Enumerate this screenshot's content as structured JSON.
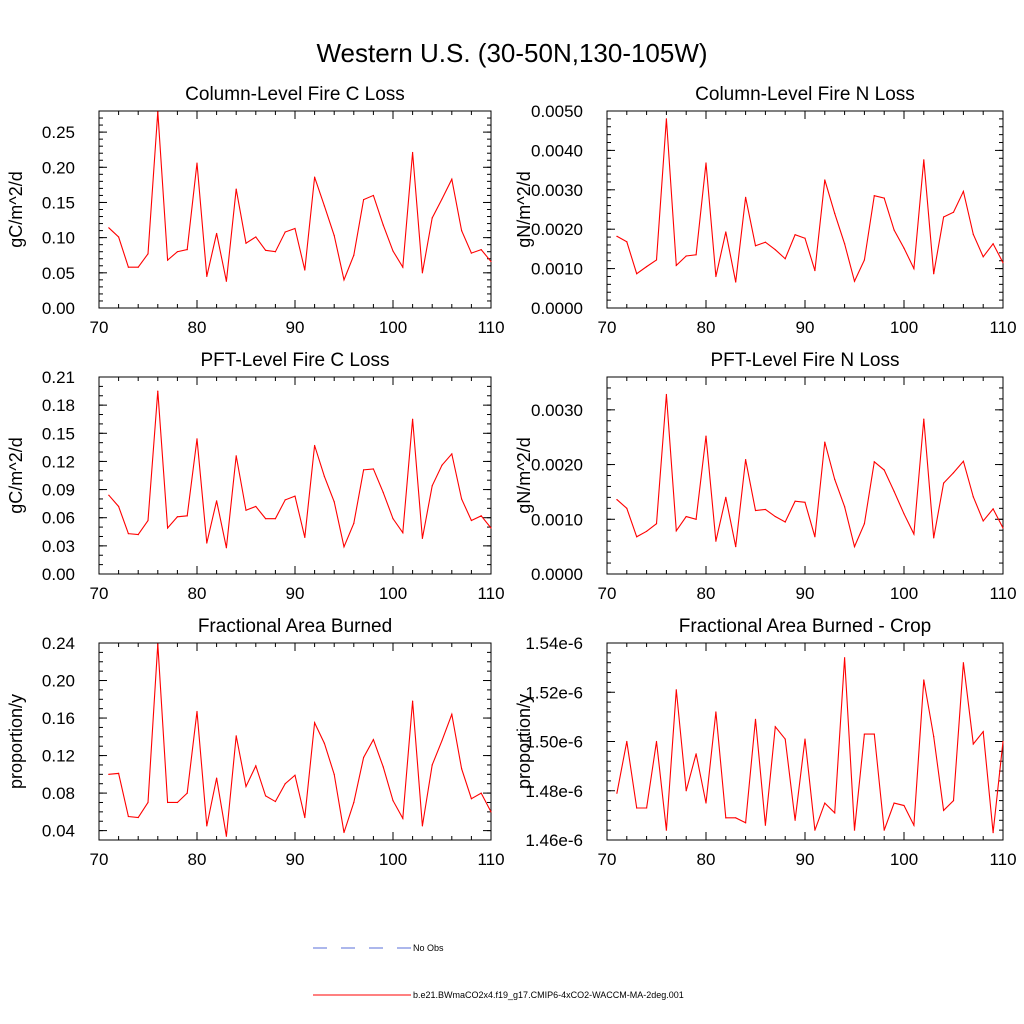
{
  "figure": {
    "title": "Western U.S. (30-50N,130-105W)"
  },
  "legend": {
    "items": [
      {
        "label": "No Obs",
        "style": "dashed",
        "color": "#5a6fd8"
      },
      {
        "label": "b.e21.BWmaCO2x4.f19_g17.CMIP6-4xCO2-WACCM-MA-2deg.001",
        "style": "solid",
        "color": "#ff0000"
      }
    ]
  },
  "chart_data": [
    {
      "type": "line",
      "title": "Column-Level Fire C Loss",
      "xlabel": "",
      "ylabel": "gC/m^2/d",
      "xlim": [
        70,
        110
      ],
      "ylim": [
        0,
        0.28
      ],
      "xticks": [
        70,
        80,
        90,
        100,
        110
      ],
      "xtick_labels": [
        "70",
        "80",
        "90",
        "100",
        "110"
      ],
      "yticks": [
        0,
        0.05,
        0.1,
        0.15,
        0.2,
        0.25
      ],
      "ytick_labels": [
        "0.00",
        "0.05",
        "0.10",
        "0.15",
        "0.20",
        "0.25"
      ],
      "yminor_step": 0.01,
      "series": [
        {
          "name": "b.e21.BWmaCO2x4.f19_g17.CMIP6-4xCO2-WACCM-MA-2deg.001",
          "color": "#ff0000",
          "x": [
            71,
            72,
            73,
            74,
            75,
            76,
            77,
            78,
            79,
            80,
            81,
            82,
            83,
            84,
            85,
            86,
            87,
            88,
            89,
            90,
            91,
            92,
            93,
            94,
            95,
            96,
            97,
            98,
            99,
            100,
            101,
            102,
            103,
            104,
            105,
            106,
            107,
            108,
            109,
            110
          ],
          "values": [
            0.114,
            0.101,
            0.058,
            0.058,
            0.077,
            0.279,
            0.068,
            0.08,
            0.083,
            0.206,
            0.045,
            0.106,
            0.038,
            0.169,
            0.092,
            0.101,
            0.082,
            0.08,
            0.108,
            0.113,
            0.054,
            0.186,
            0.145,
            0.103,
            0.04,
            0.075,
            0.154,
            0.16,
            0.118,
            0.081,
            0.058,
            0.221,
            0.05,
            0.128,
            0.155,
            0.183,
            0.11,
            0.078,
            0.083,
            0.066
          ]
        }
      ]
    },
    {
      "type": "line",
      "title": "Column-Level Fire N Loss",
      "xlabel": "",
      "ylabel": "gN/m^2/d",
      "xlim": [
        70,
        110
      ],
      "ylim": [
        0,
        0.005
      ],
      "xticks": [
        70,
        80,
        90,
        100,
        110
      ],
      "xtick_labels": [
        "70",
        "80",
        "90",
        "100",
        "110"
      ],
      "yticks": [
        0,
        0.001,
        0.002,
        0.003,
        0.004,
        0.005
      ],
      "ytick_labels": [
        "0.0000",
        "0.0010",
        "0.0020",
        "0.0030",
        "0.0040",
        "0.0050"
      ],
      "yminor_step": 0.0002,
      "series": [
        {
          "name": "b.e21.BWmaCO2x4.f19_g17.CMIP6-4xCO2-WACCM-MA-2deg.001",
          "color": "#ff0000",
          "x": [
            71,
            72,
            73,
            74,
            75,
            76,
            77,
            78,
            79,
            80,
            81,
            82,
            83,
            84,
            85,
            86,
            87,
            88,
            89,
            90,
            91,
            92,
            93,
            94,
            95,
            96,
            97,
            98,
            99,
            100,
            101,
            102,
            103,
            104,
            105,
            106,
            107,
            108,
            109,
            110
          ],
          "values": [
            0.00182,
            0.00168,
            0.00087,
            0.00105,
            0.00122,
            0.0048,
            0.00108,
            0.00132,
            0.00135,
            0.00368,
            0.0008,
            0.00193,
            0.00066,
            0.00281,
            0.00158,
            0.00167,
            0.00148,
            0.00125,
            0.00186,
            0.00177,
            0.00095,
            0.00325,
            0.0024,
            0.00163,
            0.00068,
            0.00122,
            0.00285,
            0.00279,
            0.00198,
            0.00152,
            0.001,
            0.00376,
            0.00087,
            0.00231,
            0.00243,
            0.00296,
            0.00187,
            0.0013,
            0.00163,
            0.00115
          ]
        }
      ]
    },
    {
      "type": "line",
      "title": "PFT-Level Fire C Loss",
      "xlabel": "",
      "ylabel": "gC/m^2/d",
      "xlim": [
        70,
        110
      ],
      "ylim": [
        0,
        0.21
      ],
      "xticks": [
        70,
        80,
        90,
        100,
        110
      ],
      "xtick_labels": [
        "70",
        "80",
        "90",
        "100",
        "110"
      ],
      "yticks": [
        0,
        0.03,
        0.06,
        0.09,
        0.12,
        0.15,
        0.18,
        0.21
      ],
      "ytick_labels": [
        "0.00",
        "0.03",
        "0.06",
        "0.09",
        "0.12",
        "0.15",
        "0.18",
        "0.21"
      ],
      "yminor_step": 0.01,
      "series": [
        {
          "name": "b.e21.BWmaCO2x4.f19_g17.CMIP6-4xCO2-WACCM-MA-2deg.001",
          "color": "#ff0000",
          "x": [
            71,
            72,
            73,
            74,
            75,
            76,
            77,
            78,
            79,
            80,
            81,
            82,
            83,
            84,
            85,
            86,
            87,
            88,
            89,
            90,
            91,
            92,
            93,
            94,
            95,
            96,
            97,
            98,
            99,
            100,
            101,
            102,
            103,
            104,
            105,
            106,
            107,
            108,
            109,
            110
          ],
          "values": [
            0.084,
            0.072,
            0.043,
            0.042,
            0.057,
            0.195,
            0.049,
            0.061,
            0.062,
            0.144,
            0.033,
            0.078,
            0.028,
            0.126,
            0.068,
            0.072,
            0.059,
            0.059,
            0.079,
            0.083,
            0.039,
            0.137,
            0.104,
            0.077,
            0.029,
            0.054,
            0.111,
            0.112,
            0.087,
            0.059,
            0.044,
            0.165,
            0.038,
            0.094,
            0.116,
            0.128,
            0.08,
            0.057,
            0.062,
            0.049
          ]
        }
      ]
    },
    {
      "type": "line",
      "title": "PFT-Level Fire N Loss",
      "xlabel": "",
      "ylabel": "gN/m^2/d",
      "xlim": [
        70,
        110
      ],
      "ylim": [
        0,
        0.0036
      ],
      "xticks": [
        70,
        80,
        90,
        100,
        110
      ],
      "xtick_labels": [
        "70",
        "80",
        "90",
        "100",
        "110"
      ],
      "yticks": [
        0,
        0.001,
        0.002,
        0.003
      ],
      "ytick_labels": [
        "0.0000",
        "0.0010",
        "0.0020",
        "0.0030"
      ],
      "yminor_step": 0.0002,
      "series": [
        {
          "name": "b.e21.BWmaCO2x4.f19_g17.CMIP6-4xCO2-WACCM-MA-2deg.001",
          "color": "#ff0000",
          "x": [
            71,
            72,
            73,
            74,
            75,
            76,
            77,
            78,
            79,
            80,
            81,
            82,
            83,
            84,
            85,
            86,
            87,
            88,
            89,
            90,
            91,
            92,
            93,
            94,
            95,
            96,
            97,
            98,
            99,
            100,
            101,
            102,
            103,
            104,
            105,
            106,
            107,
            108,
            109,
            110
          ],
          "values": [
            0.00136,
            0.0012,
            0.00068,
            0.00078,
            0.00092,
            0.00328,
            0.00079,
            0.00105,
            0.001,
            0.00252,
            0.0006,
            0.0014,
            0.0005,
            0.00209,
            0.00116,
            0.00118,
            0.00105,
            0.00095,
            0.00133,
            0.00131,
            0.00068,
            0.00241,
            0.00173,
            0.00123,
            0.0005,
            0.00092,
            0.00205,
            0.0019,
            0.00151,
            0.0011,
            0.00073,
            0.00283,
            0.00066,
            0.00166,
            0.00185,
            0.00206,
            0.00141,
            0.00097,
            0.00119,
            0.00084
          ]
        }
      ]
    },
    {
      "type": "line",
      "title": "Fractional Area Burned",
      "xlabel": "",
      "ylabel": "proportion/y",
      "xlim": [
        70,
        110
      ],
      "ylim": [
        0.03,
        0.24
      ],
      "xticks": [
        70,
        80,
        90,
        100,
        110
      ],
      "xtick_labels": [
        "70",
        "80",
        "90",
        "100",
        "110"
      ],
      "yticks": [
        0.04,
        0.08,
        0.12,
        0.16,
        0.2,
        0.24
      ],
      "ytick_labels": [
        "0.04",
        "0.08",
        "0.12",
        "0.16",
        "0.20",
        "0.24"
      ],
      "yminor_step": 0.01,
      "series": [
        {
          "name": "b.e21.BWmaCO2x4.f19_g17.CMIP6-4xCO2-WACCM-MA-2deg.001",
          "color": "#ff0000",
          "x": [
            71,
            72,
            73,
            74,
            75,
            76,
            77,
            78,
            79,
            80,
            81,
            82,
            83,
            84,
            85,
            86,
            87,
            88,
            89,
            90,
            91,
            92,
            93,
            94,
            95,
            96,
            97,
            98,
            99,
            100,
            101,
            102,
            103,
            104,
            105,
            106,
            107,
            108,
            109,
            110
          ],
          "values": [
            0.1,
            0.101,
            0.055,
            0.054,
            0.07,
            0.239,
            0.07,
            0.07,
            0.08,
            0.167,
            0.045,
            0.096,
            0.034,
            0.141,
            0.087,
            0.109,
            0.077,
            0.071,
            0.09,
            0.099,
            0.054,
            0.155,
            0.133,
            0.1,
            0.038,
            0.07,
            0.118,
            0.137,
            0.108,
            0.072,
            0.053,
            0.178,
            0.045,
            0.11,
            0.136,
            0.164,
            0.106,
            0.074,
            0.08,
            0.06
          ]
        }
      ]
    },
    {
      "type": "line",
      "title": "Fractional Area Burned - Crop",
      "xlabel": "",
      "ylabel": "proportion/y",
      "xlim": [
        70,
        110
      ],
      "ylim": [
        1.46e-06,
        1.54e-06
      ],
      "xticks": [
        70,
        80,
        90,
        100,
        110
      ],
      "xtick_labels": [
        "70",
        "80",
        "90",
        "100",
        "110"
      ],
      "yticks": [
        1.46e-06,
        1.48e-06,
        1.5e-06,
        1.52e-06,
        1.54e-06
      ],
      "ytick_labels": [
        "1.46e-6",
        "1.48e-6",
        "1.50e-6",
        "1.52e-6",
        "1.54e-6"
      ],
      "yminor_step": 4e-09,
      "series": [
        {
          "name": "b.e21.BWmaCO2x4.f19_g17.CMIP6-4xCO2-WACCM-MA-2deg.001",
          "color": "#ff0000",
          "x": [
            71,
            72,
            73,
            74,
            75,
            76,
            77,
            78,
            79,
            80,
            81,
            82,
            83,
            84,
            85,
            86,
            87,
            88,
            89,
            90,
            91,
            92,
            93,
            94,
            95,
            96,
            97,
            98,
            99,
            100,
            101,
            102,
            103,
            104,
            105,
            106,
            107,
            108,
            109,
            110
          ],
          "values": [
            1.479e-06,
            1.5e-06,
            1.473e-06,
            1.473e-06,
            1.5e-06,
            1.464e-06,
            1.521e-06,
            1.48e-06,
            1.495e-06,
            1.475e-06,
            1.512e-06,
            1.469e-06,
            1.469e-06,
            1.467e-06,
            1.509e-06,
            1.466e-06,
            1.506e-06,
            1.501e-06,
            1.468e-06,
            1.501e-06,
            1.464e-06,
            1.475e-06,
            1.471e-06,
            1.534e-06,
            1.464e-06,
            1.503e-06,
            1.503e-06,
            1.464e-06,
            1.475e-06,
            1.474e-06,
            1.466e-06,
            1.525e-06,
            1.502e-06,
            1.472e-06,
            1.476e-06,
            1.532e-06,
            1.499e-06,
            1.504e-06,
            1.463e-06,
            1.5e-06
          ]
        }
      ]
    }
  ]
}
